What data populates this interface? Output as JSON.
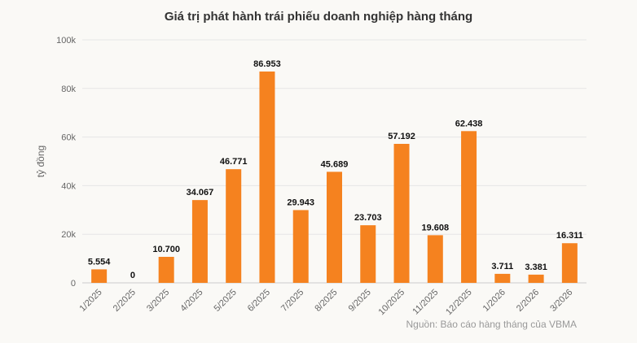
{
  "chart_data": {
    "type": "bar",
    "title": "Giá trị phát hành trái phiếu doanh nghiệp hàng tháng",
    "ylabel": "tỷ đồng",
    "xlabel": "",
    "categories": [
      "1/2025",
      "2/2025",
      "3/2025",
      "4/2025",
      "5/2025",
      "6/2025",
      "7/2025",
      "8/2025",
      "9/2025",
      "10/2025",
      "11/2025",
      "12/2025",
      "1/2026",
      "2/2026",
      "3/2026"
    ],
    "values": [
      5554,
      0,
      10700,
      34067,
      46771,
      86953,
      29943,
      45689,
      23703,
      57192,
      19608,
      62438,
      3711,
      3381,
      16311
    ],
    "data_labels": [
      "5.554",
      "0",
      "10.700",
      "34.067",
      "46.771",
      "86.953",
      "29.943",
      "45.689",
      "23.703",
      "57.192",
      "19.608",
      "62.438",
      "3.711",
      "3.381",
      "16.311"
    ],
    "ylim": [
      0,
      100000
    ],
    "yticks": [
      0,
      20000,
      40000,
      60000,
      80000,
      100000
    ],
    "ytick_labels": [
      "0",
      "20k",
      "40k",
      "60k",
      "80k",
      "100k"
    ],
    "grid": true,
    "bar_color": "#f5821f",
    "source": "Nguồn: Báo cáo hàng tháng của VBMA"
  }
}
